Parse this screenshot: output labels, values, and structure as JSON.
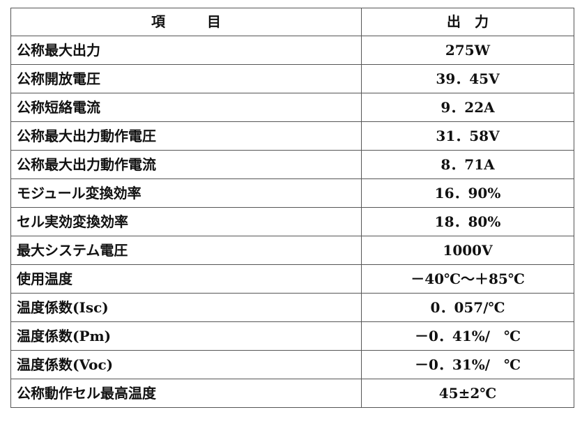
{
  "table": {
    "header": {
      "item": "項　　　目",
      "output": "出　力"
    },
    "rows": [
      {
        "item": "公称最大出力",
        "output": "275W"
      },
      {
        "item": "公称開放電圧",
        "output": "39．45V"
      },
      {
        "item": "公称短絡電流",
        "output": "9．22A"
      },
      {
        "item": "公称最大出力動作電圧",
        "output": "31．58V"
      },
      {
        "item": "公称最大出力動作電流",
        "output": "8．71A"
      },
      {
        "item": "モジュール変換効率",
        "output": "16．90%"
      },
      {
        "item": "セル実効変換効率",
        "output": "18．80%"
      },
      {
        "item": "最大システム電圧",
        "output": "1000V"
      },
      {
        "item": "使用温度",
        "output": "－40℃～＋85℃"
      },
      {
        "item": "温度係数(Isc)",
        "output": "0．057/℃"
      },
      {
        "item": "温度係数(Pm)",
        "output": "－0．41%/　℃"
      },
      {
        "item": "温度係数(Voc)",
        "output": "－0．31%/　℃"
      },
      {
        "item": "公称動作セル最高温度",
        "output": "45±2℃"
      }
    ]
  }
}
